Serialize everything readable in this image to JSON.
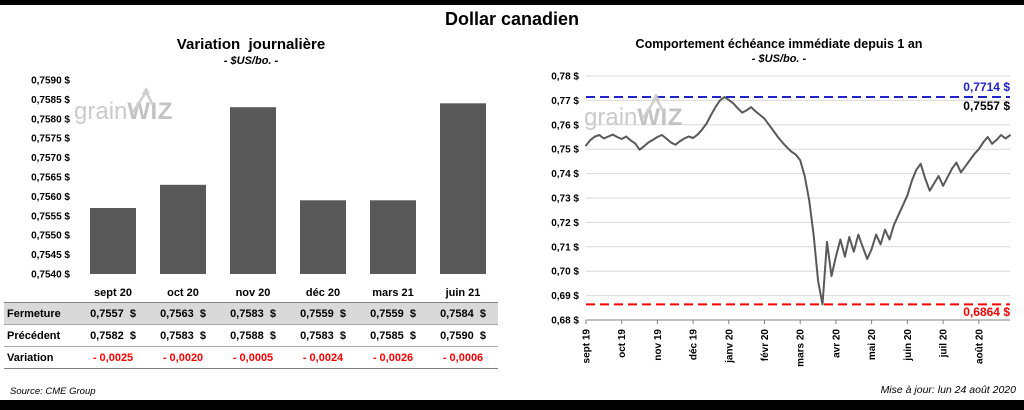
{
  "page": {
    "title": "Dollar canadien",
    "watermark_grain": "grain",
    "watermark_wiz": "WIZ",
    "source": "Source: CME Group",
    "update_note": "Mise à jour: lun 24 août 2020"
  },
  "colors": {
    "bar": "#595959",
    "line": "#595959",
    "high_dashed": "#2222CC",
    "low_dashed": "#FF0000",
    "negative_text": "#FF0000",
    "grid": "#D9D9D9",
    "table_shade": "#D9D9D9",
    "frame": "#000000"
  },
  "chart_data": [
    {
      "type": "bar",
      "title": "Variation  journalière",
      "subtitle": "- $US/bo. -",
      "categories": [
        "sept 20",
        "oct 20",
        "nov 20",
        "déc 20",
        "mars 21",
        "juin 21"
      ],
      "values": [
        0.7557,
        0.7563,
        0.7583,
        0.7559,
        0.7559,
        0.7584
      ],
      "ylim": [
        0.754,
        0.759
      ],
      "ytick_labels": [
        "0,7540 $",
        "0,7545 $",
        "0,7550 $",
        "0,7555 $",
        "0,7560 $",
        "0,7565 $",
        "0,7570 $",
        "0,7575 $",
        "0,7580 $",
        "0,7585 $",
        "0,7590 $"
      ],
      "grid": false,
      "legend": "none"
    },
    {
      "type": "line",
      "title": "Comportement échéance immédiate depuis 1 an",
      "subtitle": "- $US/bo. -",
      "x_labels": [
        "sept 19",
        "oct 19",
        "nov 19",
        "déc 19",
        "janv 20",
        "févr 20",
        "mars 20",
        "avr 20",
        "mai 20",
        "juin 20",
        "juil 20",
        "août 20"
      ],
      "values": [
        0.7515,
        0.7538,
        0.7552,
        0.7558,
        0.7544,
        0.7552,
        0.756,
        0.755,
        0.7542,
        0.7552,
        0.7536,
        0.7524,
        0.7498,
        0.7512,
        0.7528,
        0.7538,
        0.755,
        0.7558,
        0.7544,
        0.7528,
        0.7518,
        0.7532,
        0.7544,
        0.7552,
        0.7546,
        0.756,
        0.758,
        0.7605,
        0.764,
        0.7672,
        0.77,
        0.7714,
        0.7702,
        0.7688,
        0.7668,
        0.765,
        0.766,
        0.7672,
        0.7655,
        0.764,
        0.7625,
        0.76,
        0.7575,
        0.755,
        0.7528,
        0.7508,
        0.749,
        0.7478,
        0.7455,
        0.739,
        0.729,
        0.715,
        0.696,
        0.6864,
        0.712,
        0.698,
        0.706,
        0.713,
        0.706,
        0.714,
        0.708,
        0.715,
        0.71,
        0.705,
        0.709,
        0.715,
        0.711,
        0.717,
        0.713,
        0.719,
        0.723,
        0.727,
        0.731,
        0.737,
        0.7415,
        0.744,
        0.738,
        0.733,
        0.736,
        0.739,
        0.735,
        0.7385,
        0.742,
        0.7445,
        0.7405,
        0.743,
        0.7455,
        0.748,
        0.75,
        0.7528,
        0.755,
        0.7522,
        0.7538,
        0.7558,
        0.7544,
        0.7557
      ],
      "ylim": [
        0.68,
        0.78
      ],
      "ytick_labels": [
        "0,68 $",
        "0,69 $",
        "0,70 $",
        "0,71 $",
        "0,72 $",
        "0,73 $",
        "0,74 $",
        "0,75 $",
        "0,76 $",
        "0,77 $",
        "0,78 $"
      ],
      "high_value": 0.7714,
      "low_value": 0.6864,
      "line_color": "#595959",
      "grid": true,
      "legend": "none",
      "annotations": {
        "high": "0,7714 $",
        "current": "0,7557 $",
        "low": "0,6864 $"
      }
    }
  ],
  "table": {
    "rows": [
      {
        "label": "Fermeture",
        "values": [
          "0,7557  $",
          "0,7563  $",
          "0,7583  $",
          "0,7559  $",
          "0,7559  $",
          "0,7584  $"
        ]
      },
      {
        "label": "Précédent",
        "values": [
          "0,7582  $",
          "0,7583  $",
          "0,7588  $",
          "0,7583  $",
          "0,7585  $",
          "0,7590  $"
        ]
      },
      {
        "label": "Variation",
        "values": [
          "- 0,0025",
          "- 0,0020",
          "- 0,0005",
          "- 0,0024",
          "- 0,0026",
          "- 0,0006"
        ]
      }
    ]
  }
}
